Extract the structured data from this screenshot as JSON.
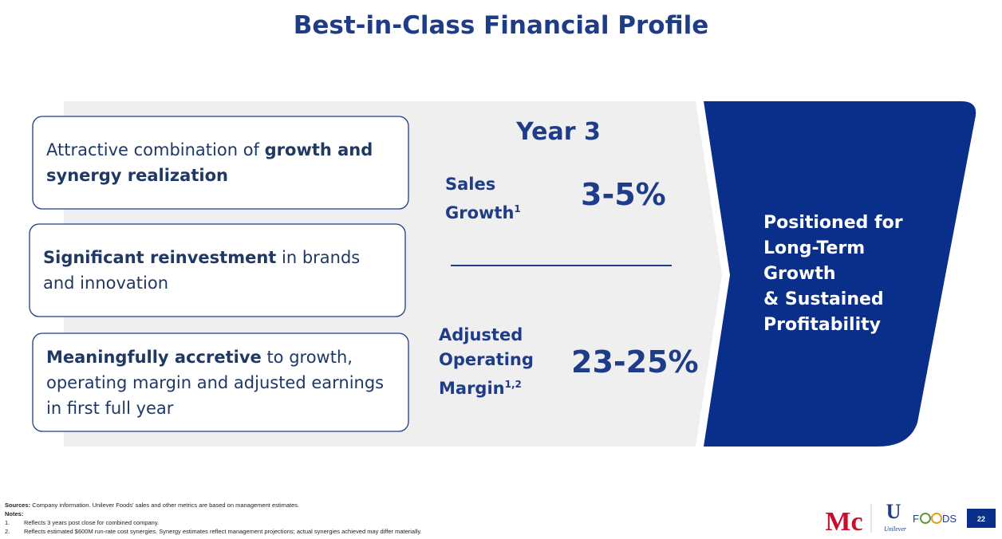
{
  "title": "Best-in-Class Financial Profile",
  "boxes": [
    {
      "parts": [
        {
          "text": "Attractive combination of ",
          "bold": false
        },
        {
          "text": "growth and synergy realization",
          "bold": true
        }
      ]
    },
    {
      "parts": [
        {
          "text": "Significant reinvestment",
          "bold": true
        },
        {
          "text": " in brands and innovation",
          "bold": false
        }
      ]
    },
    {
      "parts": [
        {
          "text": "Meaningfully accretive",
          "bold": true
        },
        {
          "text": " to growth, operating margin and adjusted earnings in first full year",
          "bold": false
        }
      ]
    }
  ],
  "year_heading": "Year 3",
  "metrics": [
    {
      "label_lines": [
        "Sales",
        "Growth"
      ],
      "sup": "1",
      "value": "3-5%"
    },
    {
      "label_lines": [
        "Adjusted",
        "Operating",
        "Margin"
      ],
      "sup": "1,2",
      "value": "23-25%"
    }
  ],
  "panel_lines": [
    "Positioned for",
    "Long-Term",
    "Growth",
    "& Sustained",
    "Profitability"
  ],
  "footer": {
    "sources_label": "Sources:",
    "sources_text": " Company information. Unilever Foods' sales and other metrics are based on management estimates.",
    "notes_label": "Notes:",
    "notes": [
      {
        "number": "1.",
        "text": "Reflects 3 years post close for combined company."
      },
      {
        "number": "2.",
        "text": "Reflects estimated $600M run-rate cost synergies. Synergy estimates reflect management projections; actual synergies achieved may differ materially."
      }
    ]
  },
  "logos": {
    "mccormick": "Mc",
    "unilever": "Unilever",
    "foods_start": "F",
    "foods_end": "DS"
  },
  "page_number": "22"
}
